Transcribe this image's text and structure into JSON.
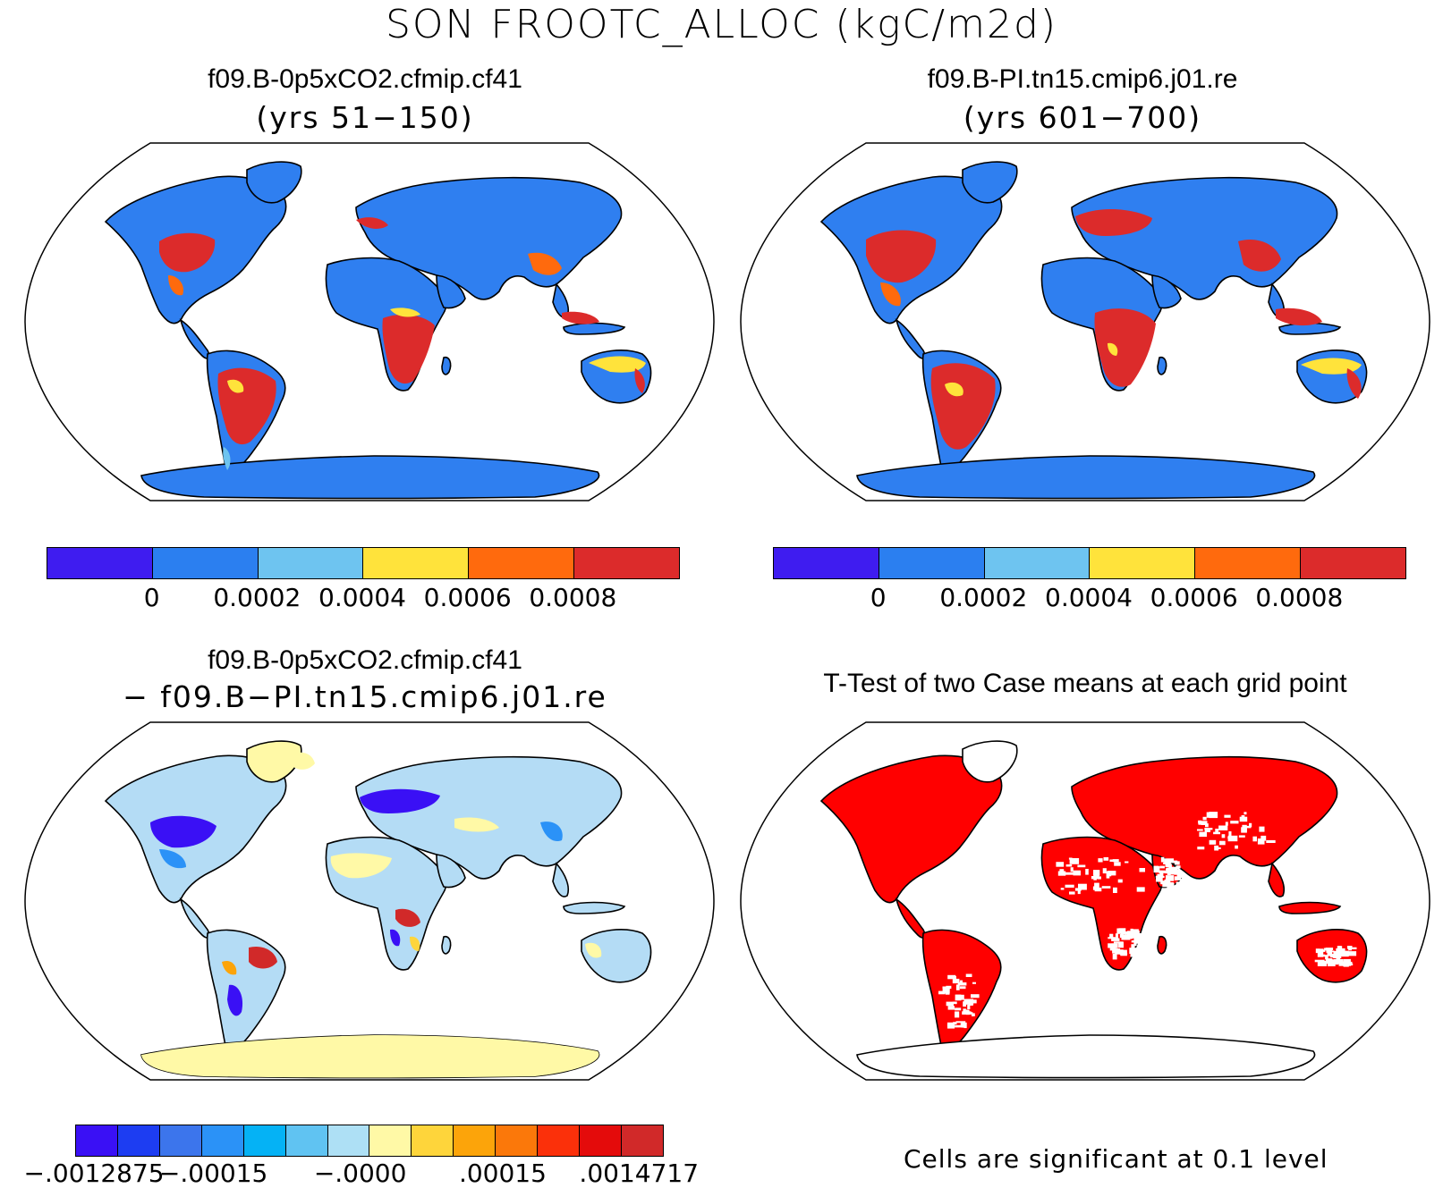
{
  "title": "SON FROOTC_ALLOC (kgC/m2d)",
  "panels": [
    {
      "title": "f09.B-0p5xCO2.cfmip.cf41",
      "subtitle": "(yrs 51−150)"
    },
    {
      "title": "f09.B-PI.tn15.cmip6.j01.re",
      "subtitle": "(yrs 601−700)"
    },
    {
      "title": "f09.B-0p5xCO2.cfmip.cf41",
      "subtitle": "− f09.B−PI.tn15.cmip6.j01.re"
    },
    {
      "title": "T-Test of two Case means at each grid point",
      "subtitle": ""
    }
  ],
  "colorbar_abs": {
    "colors": [
      "#3f1cf0",
      "#2b7ff0",
      "#6ec4f0",
      "#ffe33b",
      "#ff6a0d",
      "#dc2b2b"
    ],
    "ticks": [
      "0",
      "0.0002",
      "0.0004",
      "0.0006",
      "0.0008"
    ]
  },
  "colorbar_diff": {
    "colors": [
      "#3a10f5",
      "#1d3df2",
      "#3c75ec",
      "#2b92f7",
      "#05b2f5",
      "#60c3f2",
      "#aee0f5",
      "#fff9a6",
      "#fed53b",
      "#fca40a",
      "#fb780a",
      "#fb300a",
      "#e40b0b",
      "#d12929"
    ],
    "ticks": [
      "−.0012875",
      "−.00015",
      "−.0000",
      ".00015",
      ".0014717"
    ]
  },
  "significance_note": "Cells are significant at 0.1 level",
  "colors": {
    "land_base": "#2f7ff0",
    "diff_base": "#b4dcf5",
    "sig_red": "#ff0000",
    "ocean": "#ffffff",
    "outline": "#000000"
  }
}
